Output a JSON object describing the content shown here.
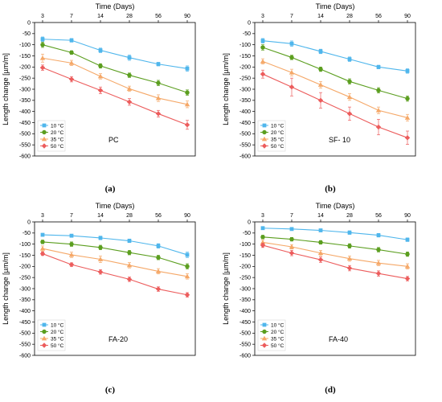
{
  "series_colors": [
    "#4fb6ec",
    "#5b9e1f",
    "#f5a868",
    "#ec5c5c"
  ],
  "series_markers": [
    "square",
    "circle",
    "triangle",
    "diamond"
  ],
  "chart_data": [
    {
      "type": "line",
      "caption": "(a)",
      "panel_label": "PC",
      "xlabel": "Time (Days)",
      "ylabel": "Length change [µm/m]",
      "x": [
        "3",
        "7",
        "14",
        "28",
        "56",
        "90"
      ],
      "ylim": [
        -600,
        0
      ],
      "yticks": [
        0,
        -50,
        -100,
        -150,
        -200,
        -250,
        -300,
        -350,
        -400,
        -450,
        -500,
        -550,
        -600
      ],
      "legend_position": "bottom-left",
      "series": [
        {
          "name": "10 °C",
          "values": [
            -75,
            -80,
            -125,
            -158,
            -187,
            -207
          ],
          "errors": [
            10,
            8,
            10,
            12,
            8,
            12
          ]
        },
        {
          "name": "20 °C",
          "values": [
            -100,
            -135,
            -195,
            -237,
            -272,
            -315
          ],
          "errors": [
            12,
            8,
            10,
            10,
            12,
            12
          ]
        },
        {
          "name": "35 °C",
          "values": [
            -160,
            -182,
            -242,
            -298,
            -340,
            -368
          ],
          "errors": [
            18,
            12,
            12,
            12,
            15,
            15
          ]
        },
        {
          "name": "50 °C",
          "values": [
            -203,
            -255,
            -305,
            -357,
            -410,
            -460
          ],
          "errors": [
            12,
            12,
            15,
            15,
            15,
            20
          ]
        }
      ]
    },
    {
      "type": "line",
      "caption": "(b)",
      "panel_label": "SF- 10",
      "xlabel": "Time (Days)",
      "ylabel": "Length change [µm/m]",
      "x": [
        "3",
        "7",
        "14",
        "28",
        "56",
        "90"
      ],
      "ylim": [
        -600,
        0
      ],
      "yticks": [
        0,
        -50,
        -100,
        -150,
        -200,
        -250,
        -300,
        -350,
        -400,
        -450,
        -500,
        -550,
        -600
      ],
      "legend_position": "bottom-left",
      "series": [
        {
          "name": "10 °C",
          "values": [
            -82,
            -95,
            -130,
            -165,
            -200,
            -218
          ],
          "errors": [
            10,
            12,
            10,
            10,
            8,
            10
          ]
        },
        {
          "name": "20 °C",
          "values": [
            -112,
            -157,
            -210,
            -265,
            -305,
            -342
          ],
          "errors": [
            12,
            10,
            10,
            12,
            12,
            12
          ]
        },
        {
          "name": "35 °C",
          "values": [
            -175,
            -225,
            -280,
            -335,
            -395,
            -428
          ],
          "errors": [
            12,
            15,
            15,
            15,
            15,
            15
          ]
        },
        {
          "name": "50 °C",
          "values": [
            -232,
            -290,
            -350,
            -410,
            -470,
            -518
          ],
          "errors": [
            18,
            40,
            35,
            30,
            35,
            30
          ]
        }
      ]
    },
    {
      "type": "line",
      "caption": "(c)",
      "panel_label": "FA-20",
      "xlabel": "Time (Days)",
      "ylabel": "Length change [µm/m]",
      "x": [
        "3",
        "7",
        "14",
        "28",
        "56",
        "90"
      ],
      "ylim": [
        -600,
        0
      ],
      "yticks": [
        0,
        -50,
        -100,
        -150,
        -200,
        -250,
        -300,
        -350,
        -400,
        -450,
        -500,
        -550,
        -600
      ],
      "legend_position": "bottom-left",
      "series": [
        {
          "name": "10 °C",
          "values": [
            -58,
            -62,
            -72,
            -85,
            -108,
            -148
          ],
          "errors": [
            5,
            5,
            8,
            8,
            10,
            12
          ]
        },
        {
          "name": "20 °C",
          "values": [
            -90,
            -100,
            -115,
            -138,
            -160,
            -200
          ],
          "errors": [
            8,
            10,
            10,
            10,
            10,
            12
          ]
        },
        {
          "name": "35 °C",
          "values": [
            -120,
            -148,
            -168,
            -195,
            -222,
            -245
          ],
          "errors": [
            12,
            12,
            15,
            12,
            12,
            12
          ]
        },
        {
          "name": "50 °C",
          "values": [
            -143,
            -192,
            -225,
            -258,
            -302,
            -328
          ],
          "errors": [
            8,
            8,
            10,
            10,
            10,
            10
          ]
        }
      ]
    },
    {
      "type": "line",
      "caption": "(d)",
      "panel_label": "FA-40",
      "xlabel": "Time (Days)",
      "ylabel": "Length change [µm/m]",
      "x": [
        "3",
        "7",
        "14",
        "28",
        "56",
        "90"
      ],
      "ylim": [
        -600,
        0
      ],
      "yticks": [
        0,
        -50,
        -100,
        -150,
        -200,
        -250,
        -300,
        -350,
        -400,
        -450,
        -500,
        -550,
        -600
      ],
      "legend_position": "bottom-left",
      "series": [
        {
          "name": "10 °C",
          "values": [
            -28,
            -32,
            -38,
            -48,
            -60,
            -80
          ],
          "errors": [
            5,
            5,
            5,
            8,
            8,
            8
          ]
        },
        {
          "name": "20 °C",
          "values": [
            -68,
            -78,
            -92,
            -108,
            -125,
            -145
          ],
          "errors": [
            8,
            8,
            8,
            10,
            10,
            10
          ]
        },
        {
          "name": "35 °C",
          "values": [
            -92,
            -112,
            -140,
            -165,
            -185,
            -200
          ],
          "errors": [
            10,
            10,
            12,
            12,
            12,
            12
          ]
        },
        {
          "name": "50 °C",
          "values": [
            -105,
            -140,
            -170,
            -208,
            -232,
            -255
          ],
          "errors": [
            10,
            12,
            12,
            12,
            12,
            10
          ]
        }
      ]
    }
  ]
}
